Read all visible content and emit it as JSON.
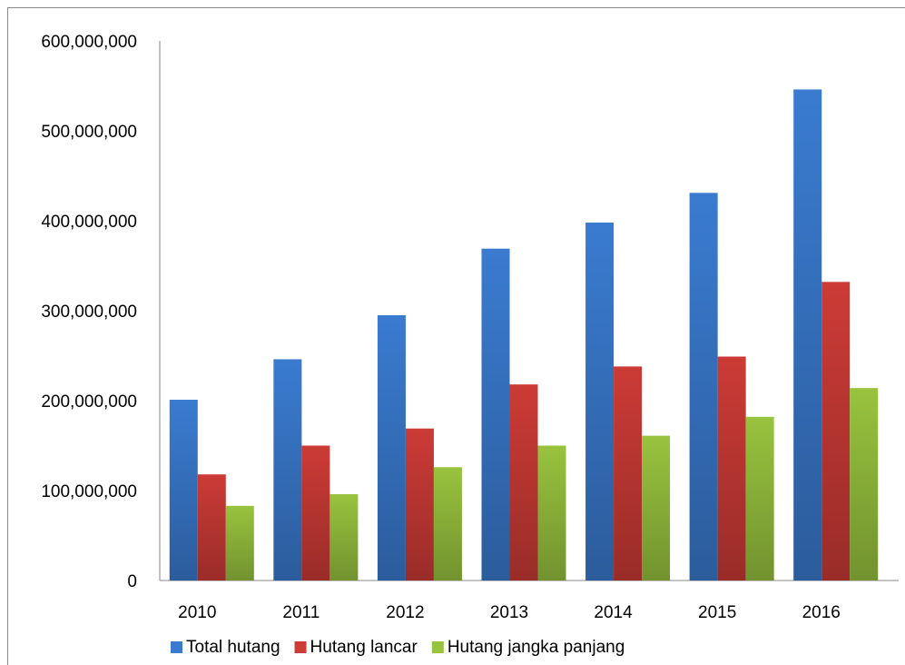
{
  "chart_data": {
    "type": "bar",
    "categories": [
      "2010",
      "2011",
      "2012",
      "2013",
      "2014",
      "2015",
      "2016"
    ],
    "series": [
      {
        "name": "Total hutang",
        "color": "#3a7bd0",
        "values": [
          201000000,
          246000000,
          295000000,
          369000000,
          398000000,
          431000000,
          546000000
        ]
      },
      {
        "name": "Hutang lancar",
        "color": "#cc3b36",
        "values": [
          118000000,
          150000000,
          169000000,
          218000000,
          238000000,
          249000000,
          332000000
        ]
      },
      {
        "name": "Hutang jangka panjang",
        "color": "#98c33e",
        "values": [
          83000000,
          96000000,
          126000000,
          150000000,
          161000000,
          182000000,
          214000000
        ]
      }
    ],
    "ylim": [
      0,
      600000000
    ],
    "yticks": [
      0,
      {
        "value": 100000000,
        "label": "100,000,000"
      },
      {
        "value": 200000000,
        "label": "200,000,000"
      },
      {
        "value": 300000000,
        "label": "300,000,000"
      },
      {
        "value": 400000000,
        "label": "400,000,000"
      },
      {
        "value": 500000000,
        "label": "500,000,000"
      },
      {
        "value": 600000000,
        "label": "600,000,000"
      }
    ],
    "grid": false,
    "legend": "bottom"
  }
}
